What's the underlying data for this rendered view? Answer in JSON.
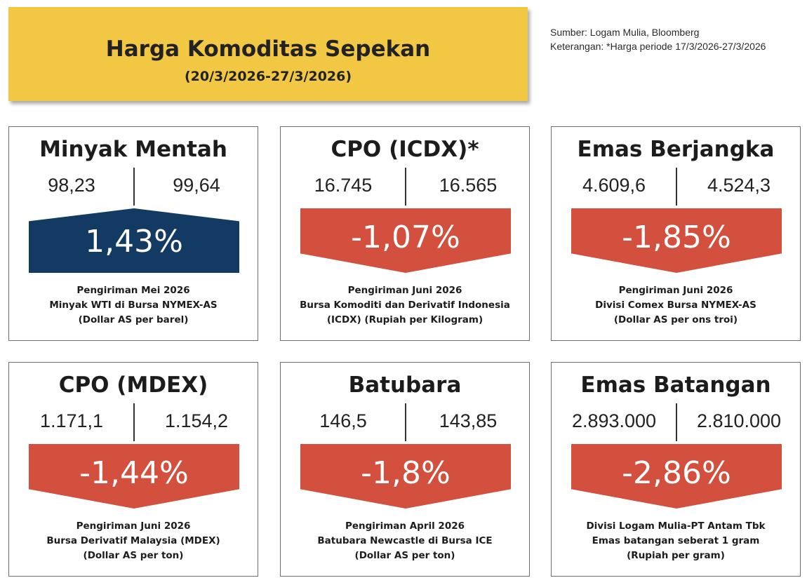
{
  "header": {
    "title": "Harga Komoditas Sepekan",
    "period": "(20/3/2026-27/3/2026)",
    "source": "Sumber: Logam Mulia, Bloomberg",
    "note": "Keterangan: *Harga periode 17/3/2026-27/3/2026"
  },
  "colors": {
    "banner": "#f2c744",
    "up": "#123a63",
    "down": "#d4503e"
  },
  "cards": [
    {
      "title": "Minyak Mentah",
      "prev": "98,23",
      "curr": "99,64",
      "change": "1,43%",
      "direction": "up",
      "desc1": "Pengiriman Mei 2026",
      "desc2": "Minyak WTI di Bursa NYMEX-AS",
      "desc3": "(Dollar AS per barel)"
    },
    {
      "title": "CPO (ICDX)*",
      "prev": "16.745",
      "curr": "16.565",
      "change": "-1,07%",
      "direction": "down",
      "desc1": "Pengiriman Juni 2026",
      "desc2": "Bursa Komoditi dan Derivatif Indonesia",
      "desc3": "(ICDX) (Rupiah per Kilogram)"
    },
    {
      "title": "Emas Berjangka",
      "prev": "4.609,6",
      "curr": "4.524,3",
      "change": "-1,85%",
      "direction": "down",
      "desc1": "Pengiriman Juni 2026",
      "desc2": "Divisi Comex Bursa NYMEX-AS",
      "desc3": "(Dollar AS per ons troi)"
    },
    {
      "title": "CPO (MDEX)",
      "prev": "1.171,1",
      "curr": "1.154,2",
      "change": "-1,44%",
      "direction": "down",
      "desc1": "Pengiriman Juni 2026",
      "desc2": "Bursa Derivatif Malaysia (MDEX)",
      "desc3": "(Dollar AS per ton)"
    },
    {
      "title": "Batubara",
      "prev": "146,5",
      "curr": "143,85",
      "change": "-1,8%",
      "direction": "down",
      "desc1": "Pengiriman April 2026",
      "desc2": "Batubara Newcastle di Bursa ICE",
      "desc3": "(Dollar AS per ton)"
    },
    {
      "title": "Emas Batangan",
      "prev": "2.893.000",
      "curr": "2.810.000",
      "change": "-2,86%",
      "direction": "down",
      "desc1": "Divisi Logam Mulia-PT Antam Tbk",
      "desc2": "Emas batangan seberat 1 gram",
      "desc3": "(Rupiah per gram)"
    }
  ]
}
